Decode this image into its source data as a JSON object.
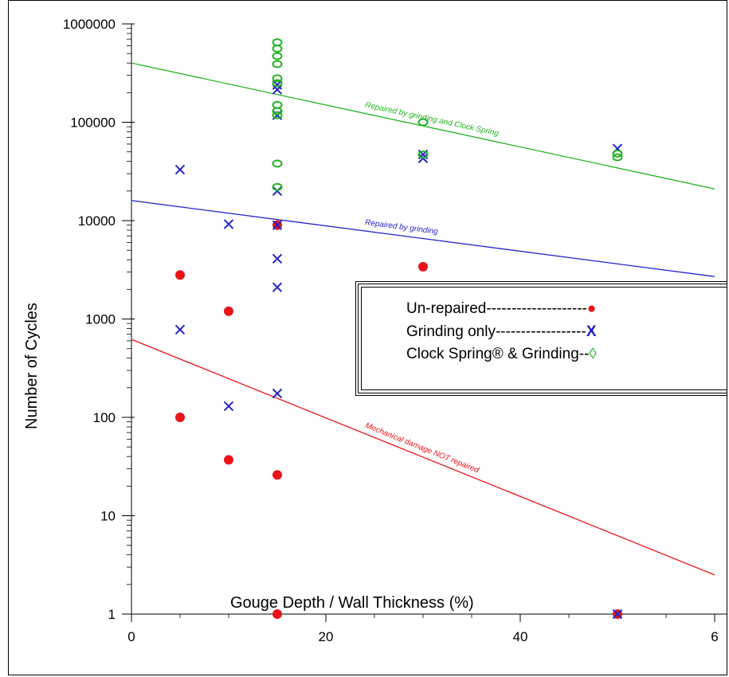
{
  "chart_data": {
    "type": "scatter",
    "title": "",
    "xlabel": "Gouge Depth / Wall Thickness (%)",
    "ylabel": "Number of Cycles",
    "yscale": "log",
    "xlim": [
      0,
      60
    ],
    "ylim": [
      1,
      1000000
    ],
    "x_ticks": [
      "0",
      "20",
      "40",
      "6"
    ],
    "y_ticks": [
      "1",
      "10",
      "100",
      "1000",
      "10000",
      "100000",
      "1000000"
    ],
    "grid": false,
    "legend_placement": "center-right",
    "series": [
      {
        "name": "Un-repaired",
        "legend_label": "Un-repaired--------------------",
        "marker": "filled-circle",
        "color": "#e8141a",
        "points": [
          [
            5,
            2800
          ],
          [
            5,
            100
          ],
          [
            10,
            1200
          ],
          [
            10,
            37
          ],
          [
            15,
            26
          ],
          [
            15,
            1
          ],
          [
            15,
            9000
          ],
          [
            30,
            3400
          ],
          [
            50,
            1
          ]
        ]
      },
      {
        "name": "Grinding only",
        "legend_label": "Grinding only------------------",
        "marker": "x",
        "color": "#2424c8",
        "points": [
          [
            5,
            33000
          ],
          [
            5,
            780
          ],
          [
            10,
            9200
          ],
          [
            10,
            130
          ],
          [
            15,
            240000
          ],
          [
            15,
            215000
          ],
          [
            15,
            118000
          ],
          [
            15,
            20000
          ],
          [
            15,
            4100
          ],
          [
            15,
            2100
          ],
          [
            15,
            175
          ],
          [
            15,
            9000
          ],
          [
            30,
            47000
          ],
          [
            30,
            43000
          ],
          [
            50,
            54000
          ],
          [
            50,
            1
          ]
        ]
      },
      {
        "name": "Clock Spring® & Grinding",
        "legend_label": "Clock Spring® & Grinding--",
        "marker": "open-diamond",
        "color": "#22b422",
        "points": [
          [
            15,
            650000
          ],
          [
            15,
            560000
          ],
          [
            15,
            470000
          ],
          [
            15,
            390000
          ],
          [
            15,
            280000
          ],
          [
            15,
            250000
          ],
          [
            15,
            150000
          ],
          [
            15,
            130000
          ],
          [
            15,
            118000
          ],
          [
            15,
            38000
          ],
          [
            15,
            22000
          ],
          [
            30,
            100000
          ],
          [
            30,
            47000
          ],
          [
            50,
            48000
          ],
          [
            50,
            44000
          ]
        ]
      }
    ],
    "fit_lines": [
      {
        "label": "Repaired by grinding and Clock Spring",
        "color": "#22b422",
        "x": [
          0,
          60
        ],
        "y": [
          400000,
          21000
        ]
      },
      {
        "label": "Repaired by grinding",
        "color": "#2424c8",
        "x": [
          0,
          60
        ],
        "y": [
          16000,
          2700
        ]
      },
      {
        "label": "Mechanical damage NOT repaired",
        "color": "#e8141a",
        "x": [
          0,
          60
        ],
        "y": [
          620,
          2.5
        ]
      }
    ],
    "legend_markers": {
      "Un-repaired": "●",
      "Grinding only": "X",
      "Clock Spring® & Grinding": "◊"
    }
  }
}
